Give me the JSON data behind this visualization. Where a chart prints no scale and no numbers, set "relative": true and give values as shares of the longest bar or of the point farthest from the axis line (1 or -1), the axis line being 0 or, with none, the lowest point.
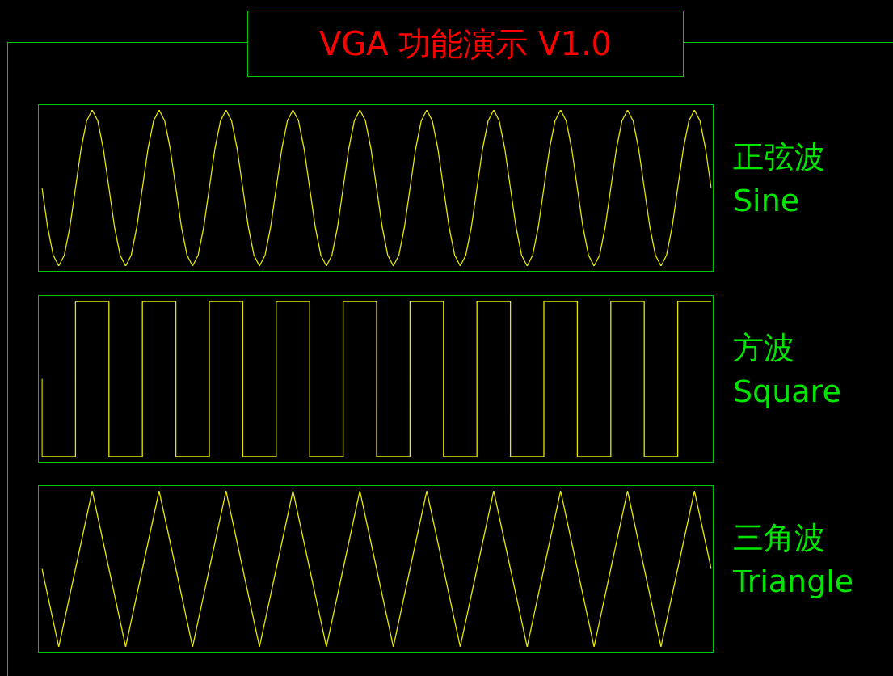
{
  "chart_data": [
    {
      "type": "line",
      "title": "VGA 功能演示 V1.0",
      "relative": true,
      "categories": [
        null,
        null,
        null,
        null,
        null,
        null,
        null,
        null,
        null,
        null,
        null,
        null,
        null,
        null,
        null,
        null,
        null,
        null,
        null,
        null,
        null,
        null,
        null,
        null,
        null,
        null,
        null,
        null,
        null,
        null,
        null,
        null,
        null,
        null,
        null,
        null,
        null,
        null,
        null,
        null,
        null,
        null,
        null,
        null,
        null,
        null,
        null,
        null,
        null,
        null,
        null,
        null,
        null,
        null,
        null,
        null,
        null,
        null,
        null,
        null,
        null,
        null,
        null,
        null,
        null,
        null,
        null,
        null,
        null,
        null,
        null,
        null,
        null,
        null,
        null,
        null,
        null,
        null,
        null,
        null,
        null,
        null,
        null,
        null,
        null,
        null,
        null,
        null,
        null,
        null,
        null,
        null,
        null,
        null,
        null,
        null,
        null,
        null,
        null,
        null,
        null,
        null,
        null,
        null,
        null,
        null,
        null,
        null,
        null,
        null,
        null,
        null,
        null,
        null,
        null,
        null,
        null,
        null,
        null,
        null,
        null
      ],
      "series": [
        {
          "name": "正弦波\nSine",
          "color": "#e6e600",
          "values": [
            0.5,
            0.25,
            0.07,
            0,
            0.07,
            0.25,
            0.5,
            0.75,
            0.93,
            1,
            0.93,
            0.75,
            0.5,
            0.25,
            0.07,
            0,
            0.07,
            0.25,
            0.5,
            0.75,
            0.93,
            1,
            0.93,
            0.75,
            0.5,
            0.25,
            0.07,
            0,
            0.07,
            0.25,
            0.5,
            0.75,
            0.93,
            1,
            0.93,
            0.75,
            0.5,
            0.25,
            0.07,
            0,
            0.07,
            0.25,
            0.5,
            0.75,
            0.93,
            1,
            0.93,
            0.75,
            0.5,
            0.25,
            0.07,
            0,
            0.07,
            0.25,
            0.5,
            0.75,
            0.93,
            1,
            0.93,
            0.75,
            0.5,
            0.25,
            0.07,
            0,
            0.07,
            0.25,
            0.5,
            0.75,
            0.93,
            1,
            0.93,
            0.75,
            0.5,
            0.25,
            0.07,
            0,
            0.07,
            0.25,
            0.5,
            0.75,
            0.93,
            1,
            0.93,
            0.75,
            0.5,
            0.25,
            0.07,
            0,
            0.07,
            0.25,
            0.5,
            0.75,
            0.93,
            1,
            0.93,
            0.75,
            0.5,
            0.25,
            0.07,
            0,
            0.07,
            0.25,
            0.5,
            0.75,
            0.93,
            1,
            0.93,
            0.75,
            0.5,
            0.25,
            0.07,
            0,
            0.07,
            0.25,
            0.5,
            0.75,
            0.93,
            1,
            0.93,
            0.75,
            0.5
          ]
        }
      ]
    },
    {
      "type": "step",
      "relative": true,
      "categories": [
        null,
        null,
        null,
        null,
        null,
        null,
        null,
        null,
        null,
        null,
        null,
        null,
        null,
        null,
        null,
        null,
        null,
        null,
        null,
        null,
        null
      ],
      "series": [
        {
          "name": "方波\nSquare",
          "color": "#e6e600",
          "values": [
            0.5,
            0,
            1,
            0,
            1,
            0,
            1,
            0,
            1,
            0,
            1,
            0,
            1,
            0,
            1,
            0,
            1,
            0,
            1,
            0,
            1
          ]
        }
      ]
    },
    {
      "type": "line",
      "relative": true,
      "categories": [
        null,
        null,
        null,
        null,
        null,
        null,
        null,
        null,
        null,
        null,
        null,
        null,
        null,
        null,
        null,
        null,
        null,
        null,
        null,
        null,
        null,
        null,
        null,
        null,
        null,
        null,
        null,
        null,
        null,
        null,
        null,
        null,
        null,
        null,
        null,
        null,
        null,
        null,
        null,
        null,
        null
      ],
      "series": [
        {
          "name": "三角波\nTriangle",
          "color": "#e6e600",
          "values": [
            0.5,
            0,
            0.5,
            1,
            0.5,
            0,
            0.5,
            1,
            0.5,
            0,
            0.5,
            1,
            0.5,
            0,
            0.5,
            1,
            0.5,
            0,
            0.5,
            1,
            0.5,
            0,
            0.5,
            1,
            0.5,
            0,
            0.5,
            1,
            0.5,
            0,
            0.5,
            1,
            0.5,
            0,
            0.5,
            1,
            0.5,
            0,
            0.5,
            1,
            0.5
          ]
        }
      ]
    }
  ]
}
